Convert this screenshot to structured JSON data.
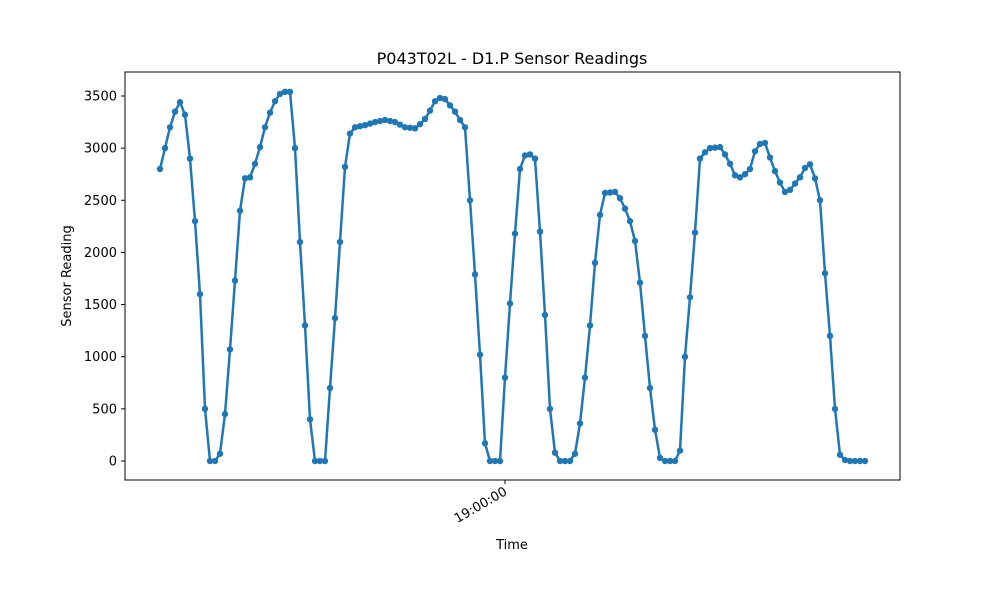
{
  "chart_data": {
    "type": "line",
    "title": "P043T02L - D1.P Sensor Readings",
    "xlabel": "Time",
    "ylabel": "Sensor Reading",
    "x": [
      "18:48:30",
      "18:48:40",
      "18:48:50",
      "18:49:00",
      "18:49:10",
      "18:49:20",
      "18:49:30",
      "18:49:40",
      "18:49:50",
      "18:50:00",
      "18:50:10",
      "18:50:20",
      "18:50:30",
      "18:50:40",
      "18:50:50",
      "18:51:00",
      "18:51:10",
      "18:51:20",
      "18:51:30",
      "18:51:40",
      "18:51:50",
      "18:52:00",
      "18:52:10",
      "18:52:20",
      "18:52:30",
      "18:52:40",
      "18:52:50",
      "18:53:00",
      "18:53:10",
      "18:53:20",
      "18:53:30",
      "18:53:40",
      "18:53:50",
      "18:54:00",
      "18:54:10",
      "18:54:20",
      "18:54:30",
      "18:54:40",
      "18:54:50",
      "18:55:00",
      "18:55:10",
      "18:55:20",
      "18:55:30",
      "18:55:40",
      "18:55:50",
      "18:56:00",
      "18:56:10",
      "18:56:20",
      "18:56:30",
      "18:56:40",
      "18:56:50",
      "18:57:00",
      "18:57:10",
      "18:57:20",
      "18:57:30",
      "18:57:40",
      "18:57:50",
      "18:58:00",
      "18:58:10",
      "18:58:20",
      "18:58:30",
      "18:58:40",
      "18:58:50",
      "18:59:00",
      "18:59:10",
      "18:59:20",
      "18:59:30",
      "18:59:40",
      "18:59:50",
      "19:00:00",
      "19:00:10",
      "19:00:20",
      "19:00:30",
      "19:00:40",
      "19:00:50",
      "19:01:00",
      "19:01:10",
      "19:01:20",
      "19:01:30",
      "19:01:40",
      "19:01:50",
      "19:02:00",
      "19:02:10",
      "19:02:20",
      "19:02:30",
      "19:02:40",
      "19:02:50",
      "19:03:00",
      "19:03:10",
      "19:03:20",
      "19:03:30",
      "19:03:40",
      "19:03:50",
      "19:04:00",
      "19:04:10",
      "19:04:20",
      "19:04:30",
      "19:04:40",
      "19:04:50",
      "19:05:00",
      "19:05:10",
      "19:05:20",
      "19:05:30",
      "19:05:40",
      "19:05:50",
      "19:06:00",
      "19:06:10",
      "19:06:20",
      "19:06:30",
      "19:06:40",
      "19:06:50",
      "19:07:00",
      "19:07:10",
      "19:07:20",
      "19:07:30",
      "19:07:40",
      "19:07:50",
      "19:08:00",
      "19:08:10",
      "19:08:20",
      "19:08:30",
      "19:08:40",
      "19:08:50",
      "19:09:00",
      "19:09:10",
      "19:09:20",
      "19:09:30",
      "19:09:40",
      "19:09:50",
      "19:10:00",
      "19:10:10",
      "19:10:20",
      "19:10:30",
      "19:10:40",
      "19:10:50",
      "19:11:00",
      "19:11:10",
      "19:11:20",
      "19:11:30",
      "19:11:40",
      "19:11:50",
      "19:12:00"
    ],
    "series": [
      {
        "name": "D1.P",
        "color": "#1f77b4",
        "values": [
          2800,
          3000,
          3200,
          3350,
          3440,
          3320,
          2900,
          2300,
          1600,
          500,
          0,
          0,
          70,
          450,
          1070,
          1730,
          2400,
          2710,
          2720,
          2850,
          3010,
          3200,
          3340,
          3450,
          3520,
          3540,
          3540,
          3000,
          2100,
          1300,
          400,
          0,
          0,
          0,
          700,
          1370,
          2100,
          2820,
          3140,
          3200,
          3210,
          3220,
          3235,
          3250,
          3260,
          3270,
          3260,
          3250,
          3225,
          3200,
          3195,
          3190,
          3230,
          3280,
          3360,
          3450,
          3480,
          3470,
          3410,
          3350,
          3270,
          3200,
          2500,
          1790,
          1020,
          170,
          0,
          0,
          0,
          800,
          1510,
          2180,
          2800,
          2930,
          2940,
          2900,
          2200,
          1400,
          500,
          80,
          0,
          0,
          0,
          70,
          360,
          800,
          1300,
          1900,
          2360,
          2570,
          2575,
          2580,
          2520,
          2420,
          2300,
          2110,
          1710,
          1200,
          700,
          300,
          30,
          0,
          0,
          0,
          100,
          1000,
          1570,
          2190,
          2900,
          2960,
          3000,
          3005,
          3010,
          2940,
          2850,
          2740,
          2720,
          2750,
          2800,
          2970,
          3040,
          3050,
          2910,
          2780,
          2670,
          2580,
          2600,
          2660,
          2720,
          2810,
          2845,
          2710,
          2500,
          1800,
          1200,
          500,
          60,
          10,
          0,
          0,
          0,
          0
        ]
      }
    ],
    "xlim": [
      "18:47:20",
      "19:13:10"
    ],
    "xticks": [
      "19:00:00"
    ],
    "ylim": [
      -182,
      3730
    ],
    "yticks": [
      0,
      500,
      1000,
      1500,
      2000,
      2500,
      3000,
      3500
    ],
    "grid": false,
    "markers": true
  }
}
